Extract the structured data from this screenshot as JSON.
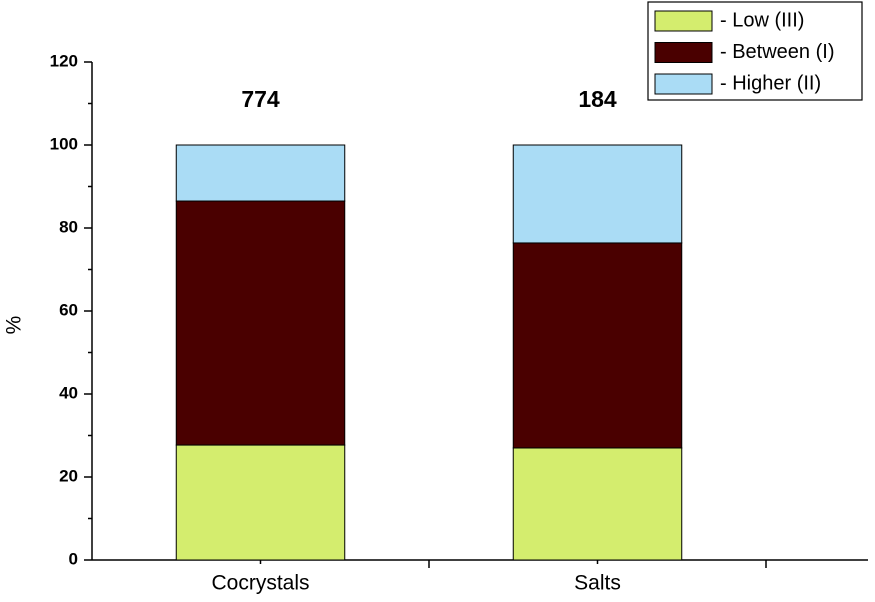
{
  "chart_data": {
    "type": "stacked-bar",
    "y_label": "%",
    "categories": [
      "Cocrystals",
      "Salts"
    ],
    "annotations": [
      774,
      184
    ],
    "series": [
      {
        "name": "- Low (III)",
        "color": "#d4ed6e",
        "values": [
          27.7,
          27.0
        ]
      },
      {
        "name": "- Between (I)",
        "color": "#4a0000",
        "values": [
          58.8,
          49.4
        ]
      },
      {
        "name": "- Higher (II)",
        "color": "#aadcf5",
        "values": [
          13.5,
          23.6
        ]
      }
    ],
    "ylim": [
      0,
      120
    ],
    "yticks": [
      0,
      20,
      40,
      60,
      80,
      100,
      120
    ],
    "yminorticks": [
      10,
      30,
      50,
      70,
      90,
      110
    ],
    "legend": "top-right"
  }
}
